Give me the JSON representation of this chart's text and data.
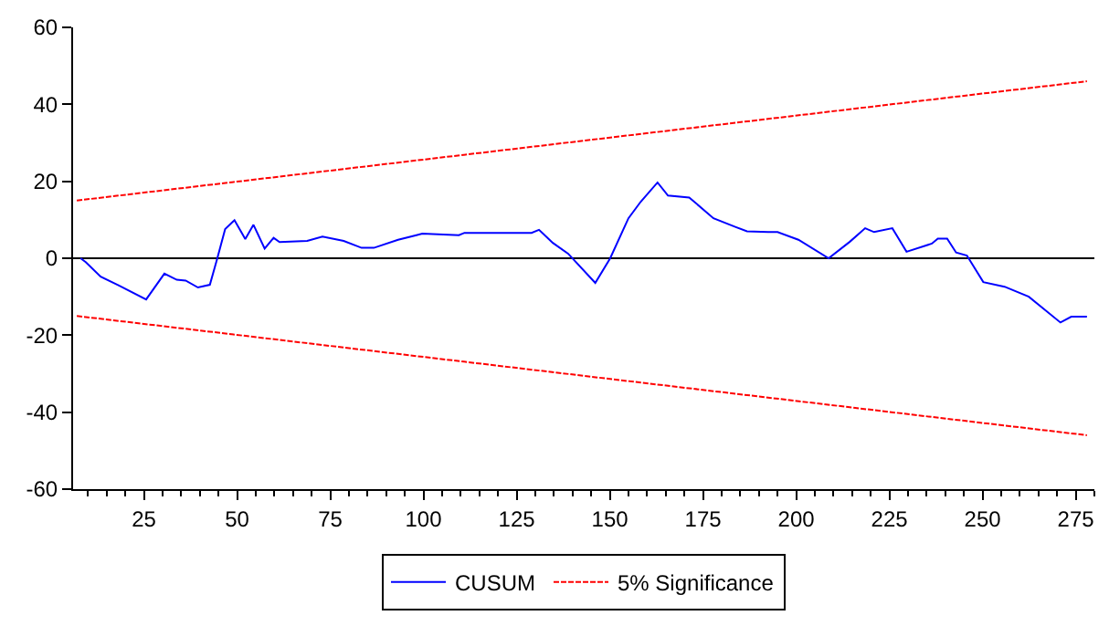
{
  "chart_data": {
    "type": "line",
    "xlim": [
      6,
      280
    ],
    "ylim": [
      -60,
      60
    ],
    "xticks": [
      25,
      50,
      75,
      100,
      125,
      150,
      175,
      200,
      225,
      250,
      275
    ],
    "yticks": [
      -60,
      -40,
      -20,
      0,
      20,
      40,
      60
    ],
    "grid": false,
    "legend": "bottom",
    "marker": "none",
    "ref_lines": [
      {
        "axis": "y",
        "value": 0,
        "color": "#000000",
        "line_style": "solid"
      }
    ],
    "series": [
      {
        "name": "CUSUM",
        "color": "#0000ff",
        "line_style": "solid",
        "x": [
          8,
          9.4,
          13.4,
          18.3,
          25.6,
          30.5,
          33.8,
          36.2,
          39.5,
          42.7,
          44.7,
          46.8,
          49.3,
          52.2,
          54.4,
          57.4,
          59.8,
          61.4,
          68.8,
          72.9,
          78.6,
          83.4,
          86.7,
          93.2,
          98.1,
          99.7,
          109.5,
          111,
          129,
          131,
          134.7,
          138.8,
          146.1,
          150.1,
          155,
          158.3,
          162.8,
          165.6,
          171.3,
          177.8,
          183.5,
          186.8,
          192.5,
          195,
          200.6,
          208.7,
          214.4,
          218.5,
          220.9,
          225.8,
          229.6,
          236.4,
          238,
          240.5,
          242.9,
          245.8,
          250.2,
          255.9,
          262.4,
          270.9,
          273.8,
          278
        ],
        "values": [
          0,
          -1,
          -4.8,
          -7.1,
          -10.7,
          -4,
          -5.6,
          -5.8,
          -7.6,
          -6.9,
          0,
          7.6,
          9.9,
          5,
          8.7,
          2.5,
          5.3,
          4.2,
          4.5,
          5.6,
          4.5,
          2.7,
          2.7,
          4.8,
          6,
          6.4,
          6,
          6.6,
          6.6,
          7.4,
          4,
          1.2,
          -6.4,
          0,
          10.4,
          14.7,
          19.7,
          16.3,
          15.8,
          10.4,
          8.2,
          7,
          6.8,
          6.8,
          4.8,
          0,
          4.3,
          7.8,
          6.8,
          7.8,
          1.7,
          3.8,
          5.1,
          5.1,
          1.5,
          0.7,
          -6.2,
          -7.4,
          -10,
          -16.7,
          -15.2,
          -15.2
        ]
      },
      {
        "name": "5% Significance",
        "color": "#ff0000",
        "line_style": "dashed",
        "x": [
          7,
          278
        ],
        "values": [
          15,
          46
        ]
      },
      {
        "color": "#ff0000",
        "line_style": "dashed",
        "x": [
          7,
          278
        ],
        "values": [
          -15,
          -46
        ]
      }
    ]
  }
}
